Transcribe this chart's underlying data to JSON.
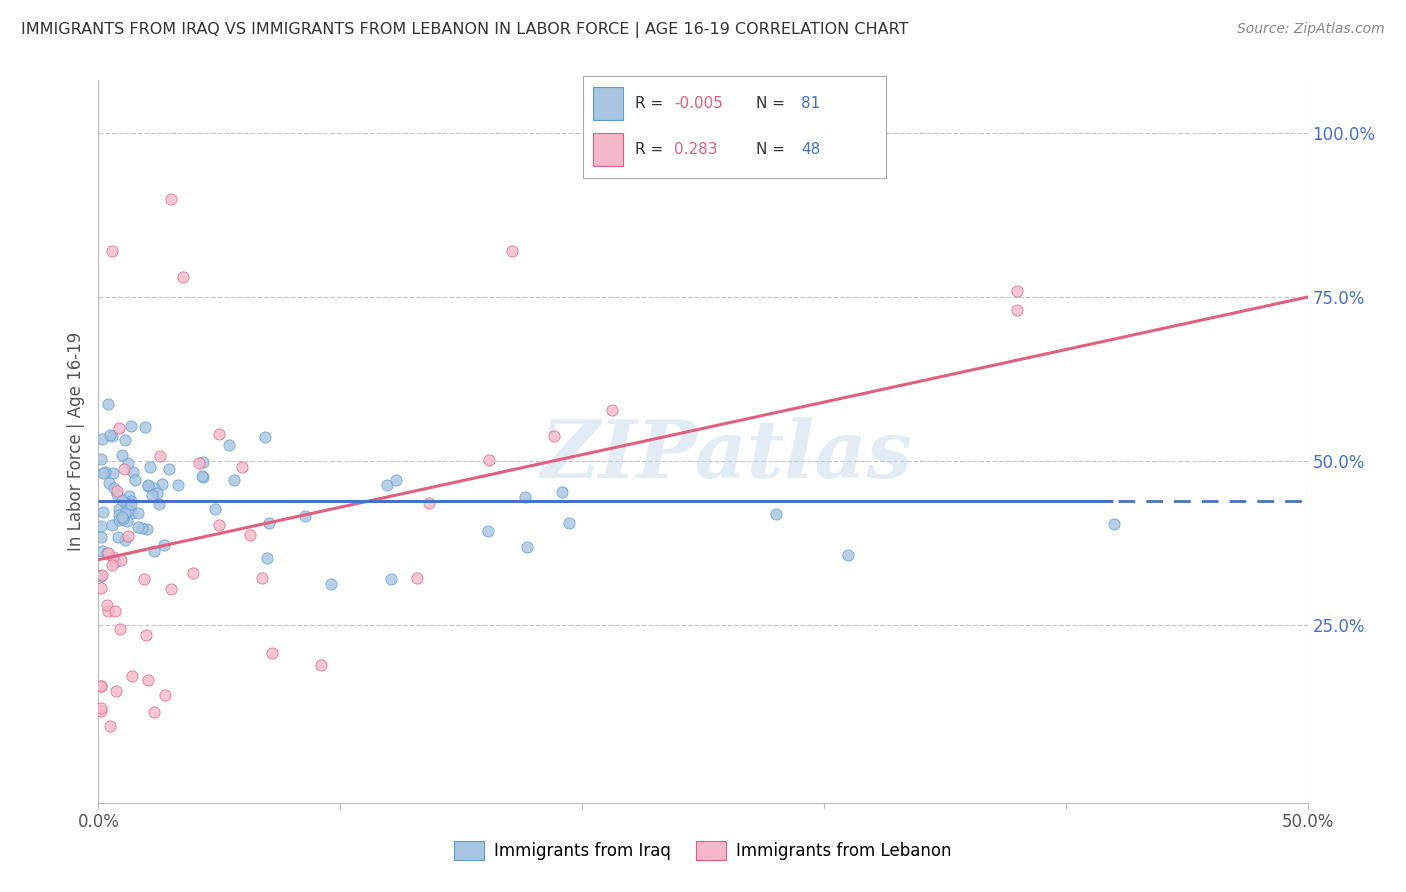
{
  "title": "IMMIGRANTS FROM IRAQ VS IMMIGRANTS FROM LEBANON IN LABOR FORCE | AGE 16-19 CORRELATION CHART",
  "source": "Source: ZipAtlas.com",
  "ylabel": "In Labor Force | Age 16-19",
  "xlabel_iraq": "Immigrants from Iraq",
  "xlabel_lebanon": "Immigrants from Lebanon",
  "xlim": [
    0.0,
    0.5
  ],
  "ylim": [
    -0.02,
    1.08
  ],
  "y_ticks": [
    0.25,
    0.5,
    0.75,
    1.0
  ],
  "y_tick_labels": [
    "25.0%",
    "50.0%",
    "75.0%",
    "100.0%"
  ],
  "iraq_color": "#a8c4e0",
  "iraq_edge_color": "#5b9bd5",
  "lebanon_color": "#f4b8c8",
  "lebanon_edge_color": "#e06080",
  "iraq_line_color": "#4472c4",
  "lebanon_line_color": "#e06080",
  "R_iraq": -0.005,
  "N_iraq": 81,
  "R_lebanon": 0.283,
  "N_lebanon": 48,
  "watermark": "ZIPatlas",
  "background_color": "#ffffff",
  "grid_color": "#c8c8c8",
  "legend_R_color": "#e06080",
  "legend_N_color": "#4472c4"
}
